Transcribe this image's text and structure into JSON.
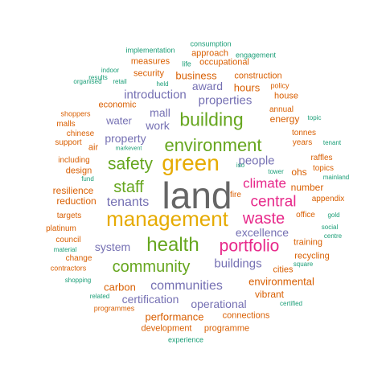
{
  "colors": {
    "teal": "#1b9e77",
    "orange": "#d95f02",
    "purple": "#7570b3",
    "pink": "#e7298a",
    "green": "#66a61e",
    "gold": "#e6ab02",
    "gray": "#666666"
  },
  "words": [
    {
      "text": "land",
      "color": "gray"
    },
    {
      "text": "management",
      "color": "gold"
    },
    {
      "text": "green",
      "color": "gold"
    },
    {
      "text": "health",
      "color": "green"
    },
    {
      "text": "environment",
      "color": "green"
    },
    {
      "text": "building",
      "color": "green"
    },
    {
      "text": "safety",
      "color": "green"
    },
    {
      "text": "community",
      "color": "green"
    },
    {
      "text": "staff",
      "color": "green"
    },
    {
      "text": "portfolio",
      "color": "pink"
    },
    {
      "text": "waste",
      "color": "pink"
    },
    {
      "text": "central",
      "color": "pink"
    },
    {
      "text": "climate",
      "color": "pink"
    },
    {
      "text": "tenants",
      "color": "purple"
    },
    {
      "text": "communities",
      "color": "purple"
    },
    {
      "text": "properties",
      "color": "purple"
    },
    {
      "text": "introduction",
      "color": "purple"
    },
    {
      "text": "buildings",
      "color": "purple"
    },
    {
      "text": "operational",
      "color": "purple"
    },
    {
      "text": "excellence",
      "color": "purple"
    },
    {
      "text": "system",
      "color": "purple"
    },
    {
      "text": "people",
      "color": "purple"
    },
    {
      "text": "certification",
      "color": "purple"
    },
    {
      "text": "work",
      "color": "purple"
    },
    {
      "text": "mall",
      "color": "purple"
    },
    {
      "text": "award",
      "color": "purple"
    },
    {
      "text": "property",
      "color": "purple"
    },
    {
      "text": "water",
      "color": "purple"
    },
    {
      "text": "business",
      "color": "orange"
    },
    {
      "text": "hours",
      "color": "orange"
    },
    {
      "text": "environmental",
      "color": "orange"
    },
    {
      "text": "performance",
      "color": "orange"
    },
    {
      "text": "carbon",
      "color": "orange"
    },
    {
      "text": "resilience",
      "color": "orange"
    },
    {
      "text": "reduction",
      "color": "orange"
    },
    {
      "text": "number",
      "color": "orange"
    },
    {
      "text": "energy",
      "color": "orange"
    },
    {
      "text": "vibrant",
      "color": "orange"
    },
    {
      "text": "training",
      "color": "orange"
    },
    {
      "text": "recycling",
      "color": "orange"
    },
    {
      "text": "cities",
      "color": "orange"
    },
    {
      "text": "ohs",
      "color": "orange"
    },
    {
      "text": "economic",
      "color": "orange"
    },
    {
      "text": "security",
      "color": "orange"
    },
    {
      "text": "occupational",
      "color": "orange"
    },
    {
      "text": "measures",
      "color": "orange"
    },
    {
      "text": "approach",
      "color": "orange"
    },
    {
      "text": "construction",
      "color": "orange"
    },
    {
      "text": "house",
      "color": "orange"
    },
    {
      "text": "annual",
      "color": "orange"
    },
    {
      "text": "tonnes",
      "color": "orange"
    },
    {
      "text": "years",
      "color": "orange"
    },
    {
      "text": "raffles",
      "color": "orange"
    },
    {
      "text": "topics",
      "color": "orange"
    },
    {
      "text": "appendix",
      "color": "orange"
    },
    {
      "text": "office",
      "color": "orange"
    },
    {
      "text": "design",
      "color": "orange"
    },
    {
      "text": "including",
      "color": "orange"
    },
    {
      "text": "support",
      "color": "orange"
    },
    {
      "text": "malls",
      "color": "orange"
    },
    {
      "text": "chinese",
      "color": "orange"
    },
    {
      "text": "shoppers",
      "color": "orange"
    },
    {
      "text": "air",
      "color": "orange"
    },
    {
      "text": "targets",
      "color": "orange"
    },
    {
      "text": "platinum",
      "color": "orange"
    },
    {
      "text": "council",
      "color": "orange"
    },
    {
      "text": "change",
      "color": "orange"
    },
    {
      "text": "contractors",
      "color": "orange"
    },
    {
      "text": "connections",
      "color": "orange"
    },
    {
      "text": "development",
      "color": "orange"
    },
    {
      "text": "programme",
      "color": "orange"
    },
    {
      "text": "programmes",
      "color": "orange"
    },
    {
      "text": "policy",
      "color": "orange"
    },
    {
      "text": "fire",
      "color": "orange"
    },
    {
      "text": "consumption",
      "color": "teal"
    },
    {
      "text": "implementation",
      "color": "teal"
    },
    {
      "text": "engagement",
      "color": "teal"
    },
    {
      "text": "life",
      "color": "teal"
    },
    {
      "text": "indoor",
      "color": "teal"
    },
    {
      "text": "results",
      "color": "teal"
    },
    {
      "text": "organised",
      "color": "teal"
    },
    {
      "text": "retail",
      "color": "teal"
    },
    {
      "text": "held",
      "color": "teal"
    },
    {
      "text": "topic",
      "color": "teal"
    },
    {
      "text": "tenant",
      "color": "teal"
    },
    {
      "text": "markevent",
      "color": "teal"
    },
    {
      "text": "iso",
      "color": "teal"
    },
    {
      "text": "tower",
      "color": "teal"
    },
    {
      "text": "mainland",
      "color": "teal"
    },
    {
      "text": "fund",
      "color": "teal"
    },
    {
      "text": "gold",
      "color": "teal"
    },
    {
      "text": "social",
      "color": "teal"
    },
    {
      "text": "centre",
      "color": "teal"
    },
    {
      "text": "material",
      "color": "teal"
    },
    {
      "text": "square",
      "color": "teal"
    },
    {
      "text": "shopping",
      "color": "teal"
    },
    {
      "text": "related",
      "color": "teal"
    },
    {
      "text": "certified",
      "color": "teal"
    },
    {
      "text": "experience",
      "color": "teal"
    }
  ]
}
